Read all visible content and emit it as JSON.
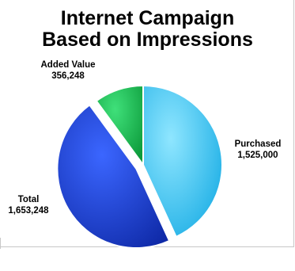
{
  "chart_data": {
    "type": "pie",
    "title": [
      "Internet Campaign",
      "Based on Impressions"
    ],
    "slices": [
      {
        "label": "Purchased",
        "value": 1525000,
        "value_text": "1,525,000",
        "color": "#33c3ee",
        "exploded": false
      },
      {
        "label": "Total",
        "value": 1653248,
        "value_text": "1,653,248",
        "color": "#1c3fd6",
        "exploded": true
      },
      {
        "label": "Added Value",
        "value": 356248,
        "value_text": "356,248",
        "color": "#19b24e",
        "exploded": false
      }
    ],
    "legend": "none",
    "data_labels": "outside"
  }
}
